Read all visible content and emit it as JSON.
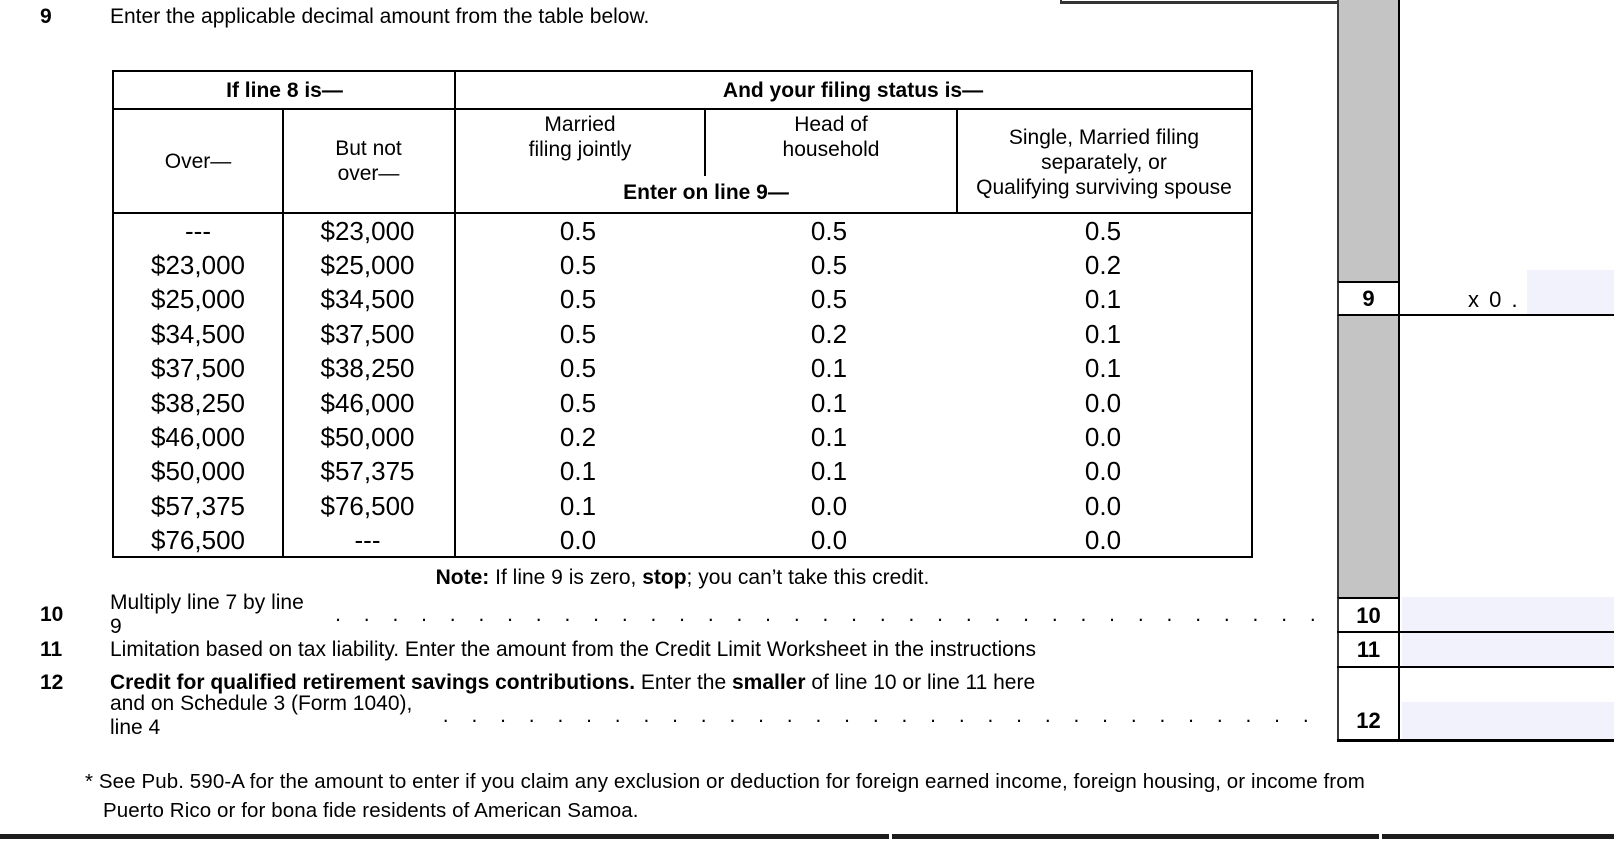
{
  "colors": {
    "field_fill": "#f1f2fb",
    "shade_gray": "#c4c4c4",
    "rule_black": "#000000"
  },
  "line9": {
    "number": "9",
    "text": "Enter the applicable decimal amount from the table below."
  },
  "table": {
    "header_left": "If line 8 is—",
    "header_right": "And your filing status is—",
    "col_over": "Over—",
    "col_but_not_over": "But not\nover—",
    "col_mfj": "Married\nfiling jointly",
    "col_hoh": "Head of\nhousehold",
    "col_single": "Single, Married filing\nseparately, or\nQualifying surviving spouse",
    "enter_on_line9": "Enter on line 9—",
    "rows": [
      [
        "---",
        "$23,000",
        "0.5",
        "0.5",
        "0.5"
      ],
      [
        "$23,000",
        "$25,000",
        "0.5",
        "0.5",
        "0.2"
      ],
      [
        "$25,000",
        "$34,500",
        "0.5",
        "0.5",
        "0.1"
      ],
      [
        "$34,500",
        "$37,500",
        "0.5",
        "0.2",
        "0.1"
      ],
      [
        "$37,500",
        "$38,250",
        "0.5",
        "0.1",
        "0.1"
      ],
      [
        "$38,250",
        "$46,000",
        "0.5",
        "0.1",
        "0.0"
      ],
      [
        "$46,000",
        "$50,000",
        "0.2",
        "0.1",
        "0.0"
      ],
      [
        "$50,000",
        "$57,375",
        "0.1",
        "0.1",
        "0.0"
      ],
      [
        "$57,375",
        "$76,500",
        "0.1",
        "0.0",
        "0.0"
      ],
      [
        "$76,500",
        "---",
        "0.0",
        "0.0",
        "0.0"
      ]
    ]
  },
  "note": {
    "label": "Note:",
    "mid": " If line 9 is zero, ",
    "stop": "stop",
    "rest": "; you can’t take this credit."
  },
  "line10": {
    "number": "10",
    "text": "Multiply line 7 by line 9"
  },
  "line11": {
    "number": "11",
    "text": "Limitation based on tax liability. Enter the amount from the Credit Limit Worksheet in the instructions"
  },
  "line12": {
    "number": "12",
    "bold1": "Credit for qualified retirement savings contributions.",
    "mid1": " Enter the ",
    "bold2": "smaller",
    "rest1": " of line 10 or line 11 here",
    "line2": "and on Schedule 3 (Form 1040), line 4"
  },
  "leader_dots": ". . . . . . . . . . . . . . . . . . . . . . . . . . . . . . . . . . .",
  "right": {
    "box9": "9",
    "multiplier_prefix": "x 0 .",
    "box10": "10",
    "box11": "11",
    "box12": "12"
  },
  "footnote": {
    "line1": "* See Pub. 590-A for the amount to enter if you claim any exclusion or deduction for foreign earned income, foreign housing, or income from",
    "line2": "Puerto Rico or for bona fide residents of American Samoa."
  }
}
